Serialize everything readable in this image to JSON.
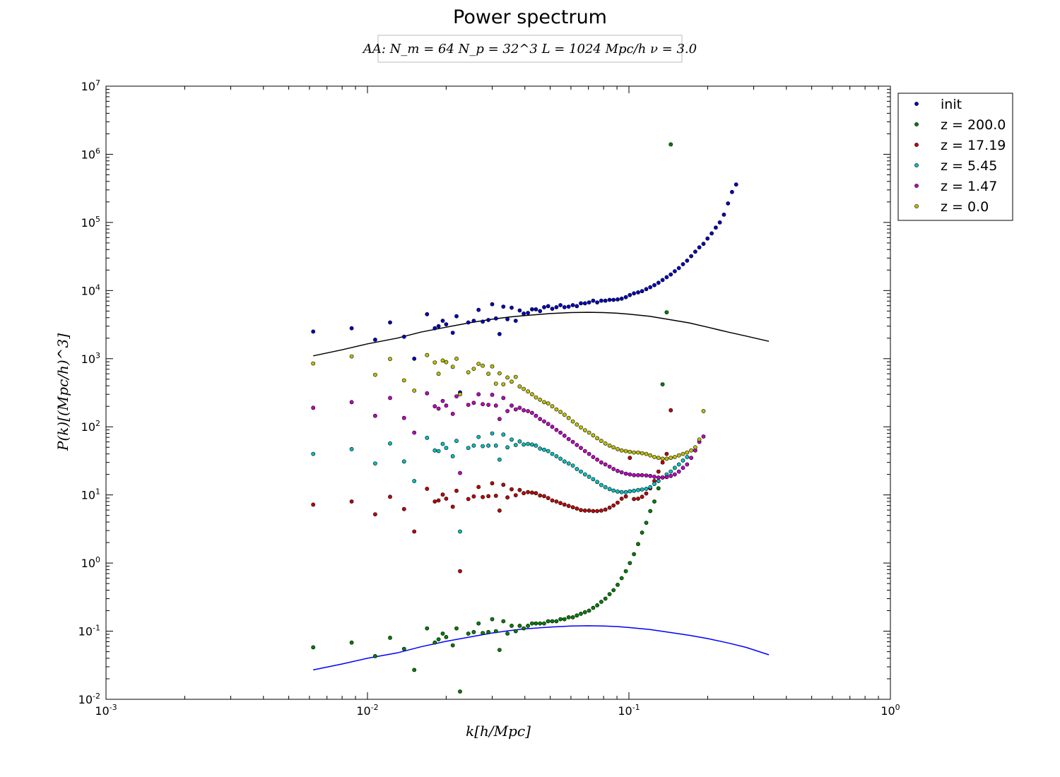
{
  "chart_data": {
    "type": "scatter",
    "title": "Power spectrum",
    "subtitle": "AA:  N_m = 64   N_p = 32^3   L = 1024 Mpc/h   ν = 3.0",
    "xlabel": "k[h/Mpc]",
    "ylabel": "P(k)[(Mpc/h)^3]",
    "xscale": "log",
    "yscale": "log",
    "xlim": [
      0.001,
      1
    ],
    "ylim": [
      0.01,
      10000000
    ],
    "x_tick_labels": [
      "10-3",
      "10-2",
      "10-1",
      "100"
    ],
    "y_tick_labels": [
      "10-2",
      "10-1",
      "100",
      "101",
      "102",
      "103",
      "104",
      "105",
      "106",
      "107"
    ],
    "legend_position": "outside-top-right",
    "grid": false,
    "k": [
      0.0062,
      0.0087,
      0.0107,
      0.0122,
      0.0138,
      0.0151,
      0.0169,
      0.0181,
      0.0187,
      0.0194,
      0.02,
      0.0212,
      0.0219,
      0.0226,
      0.0243,
      0.0255,
      0.0266,
      0.0276,
      0.029,
      0.03,
      0.031,
      0.032,
      0.0331,
      0.0343,
      0.0356,
      0.0369,
      0.0382,
      0.0396,
      0.0411,
      0.0426,
      0.0441,
      0.0457,
      0.0474,
      0.0491,
      0.0509,
      0.0528,
      0.0547,
      0.0567,
      0.0588,
      0.061,
      0.0632,
      0.0655,
      0.0679,
      0.0704,
      0.073,
      0.0756,
      0.0784,
      0.0813,
      0.0843,
      0.0873,
      0.0905,
      0.0938,
      0.0973,
      0.1008,
      0.1045,
      0.1084,
      0.1123,
      0.1165,
      0.1207,
      0.1251,
      0.1297,
      0.1345,
      0.1394,
      0.1445,
      0.1498,
      0.1553,
      0.161,
      0.1669,
      0.173,
      0.1794,
      0.1859,
      0.1928,
      0.1998,
      0.2072,
      0.2148,
      0.2226,
      0.2308,
      0.2393,
      0.248,
      0.2571,
      0.2665,
      0.2763,
      0.2864,
      0.297,
      0.3078,
      0.3191,
      0.3309,
      0.343
    ],
    "series": [
      {
        "name": "init",
        "color": "#0000bf",
        "values": [
          2500,
          2800,
          1900,
          3400,
          2100,
          1000,
          4500,
          2800,
          3000,
          3600,
          3200,
          2400,
          4200,
          320,
          3400,
          3600,
          5200,
          3500,
          3700,
          6300,
          3900,
          2300,
          5800,
          3800,
          5600,
          3600,
          5100,
          4600,
          4700,
          5300,
          5300,
          5000,
          5700,
          5900,
          5400,
          5700,
          6100,
          5700,
          5800,
          6100,
          5900,
          6500,
          6500,
          6700,
          7100,
          6700,
          7100,
          7100,
          7300,
          7300,
          7400,
          7600,
          8000,
          8600,
          9100,
          9400,
          9800,
          10500,
          11200,
          12000,
          13000,
          14300,
          15700,
          17200,
          19200,
          21400,
          24400,
          27500,
          32000,
          37200,
          43000,
          48500,
          58000,
          69000,
          84000,
          100000,
          130000,
          190000,
          280000,
          360000,
          null,
          null,
          null,
          null,
          null,
          null,
          null,
          null
        ]
      },
      {
        "name": "z = 200.0",
        "color": "#007f00",
        "values": [
          0.058,
          0.068,
          0.043,
          0.08,
          0.055,
          0.027,
          0.11,
          0.068,
          0.076,
          0.092,
          0.082,
          0.062,
          0.11,
          0.013,
          0.092,
          0.097,
          0.13,
          0.094,
          0.097,
          0.15,
          0.1,
          0.053,
          0.14,
          0.092,
          0.12,
          0.1,
          0.12,
          0.11,
          0.12,
          0.13,
          0.13,
          0.13,
          0.13,
          0.14,
          0.14,
          0.14,
          0.15,
          0.15,
          0.16,
          0.16,
          0.17,
          0.18,
          0.19,
          0.2,
          0.22,
          0.24,
          0.27,
          0.3,
          0.35,
          0.4,
          0.48,
          0.6,
          0.76,
          1.0,
          1.35,
          1.9,
          2.8,
          3.9,
          5.8,
          8.0,
          12.5,
          420,
          4800,
          1400000,
          null,
          null,
          null,
          null,
          null,
          null,
          null,
          null,
          null,
          null,
          null,
          null,
          null,
          null,
          null,
          null,
          null,
          null,
          null,
          null,
          null,
          null,
          null,
          null
        ]
      },
      {
        "name": "z = 17.19",
        "color": "#bf0000",
        "values": [
          7.2,
          8.0,
          5.2,
          9.4,
          6.2,
          2.9,
          12.3,
          8.0,
          8.3,
          10.1,
          8.8,
          6.7,
          11.5,
          0.76,
          8.7,
          9.5,
          13.1,
          9.3,
          9.6,
          14.8,
          9.7,
          5.9,
          14.1,
          9.2,
          12.1,
          9.9,
          11.8,
          10.6,
          11.0,
          10.8,
          10.6,
          9.8,
          9.6,
          9.0,
          8.3,
          8.0,
          7.6,
          7.2,
          6.9,
          6.6,
          6.3,
          6.0,
          5.9,
          5.9,
          5.8,
          5.8,
          5.9,
          6.1,
          6.5,
          7.0,
          7.7,
          8.8,
          9.5,
          35,
          8.7,
          8.8,
          9.4,
          10.5,
          12.5,
          16.0,
          22.0,
          30.0,
          40.0,
          175,
          null,
          null,
          null,
          null,
          null,
          null,
          null,
          null,
          null,
          null,
          null,
          null,
          null,
          null,
          null,
          null,
          null,
          null,
          null,
          null,
          null,
          null,
          null,
          null
        ]
      },
      {
        "name": "z = 5.45",
        "color": "#00bfbf",
        "values": [
          40,
          47,
          29,
          57,
          31,
          16,
          69,
          45,
          44,
          56,
          49,
          37,
          62,
          2.9,
          49,
          53,
          71,
          52,
          53,
          80,
          53,
          33,
          77,
          50,
          65,
          54,
          61,
          55,
          56,
          55,
          53,
          48,
          46,
          44,
          40,
          37,
          34,
          31,
          29,
          27,
          24,
          22,
          20,
          18.5,
          17,
          15.5,
          14,
          13,
          12.2,
          11.6,
          11.2,
          11,
          11,
          11.3,
          11.5,
          11.8,
          12,
          12.3,
          13,
          14.5,
          16,
          18,
          20,
          22,
          25,
          28,
          32,
          36,
          null,
          null,
          null,
          null,
          null,
          null,
          null,
          null,
          null,
          null,
          null,
          null,
          null,
          null,
          null,
          null,
          null,
          null,
          null,
          null
        ]
      },
      {
        "name": "z = 1.47",
        "color": "#bf00bf",
        "values": [
          190,
          230,
          145,
          265,
          135,
          82,
          310,
          200,
          185,
          240,
          205,
          155,
          280,
          21,
          210,
          225,
          300,
          215,
          210,
          295,
          205,
          130,
          265,
          170,
          205,
          180,
          190,
          175,
          170,
          160,
          145,
          130,
          120,
          110,
          100,
          90,
          82,
          74,
          66,
          60,
          54,
          49,
          44,
          40,
          36,
          33,
          30,
          28,
          26,
          24,
          22.5,
          21.5,
          20.5,
          20,
          19.5,
          19.5,
          19.5,
          19.3,
          19,
          18.5,
          18,
          18,
          18.3,
          19,
          20,
          22,
          25,
          28,
          35,
          45,
          60,
          72,
          null,
          null,
          null,
          null,
          null,
          null,
          null,
          null,
          null,
          null,
          null,
          null,
          null,
          null,
          null,
          null
        ]
      },
      {
        "name": "z = 0.0",
        "color": "#bfbf00",
        "values": [
          850,
          1080,
          580,
          990,
          480,
          340,
          1130,
          880,
          600,
          940,
          890,
          760,
          1000,
          300,
          630,
          710,
          840,
          790,
          600,
          770,
          430,
          610,
          420,
          530,
          460,
          540,
          390,
          360,
          330,
          300,
          270,
          250,
          230,
          220,
          200,
          180,
          165,
          150,
          135,
          120,
          108,
          98,
          89,
          82,
          75,
          68,
          62,
          57,
          53,
          50,
          47,
          45,
          44,
          43,
          42,
          42,
          41,
          40,
          38,
          36,
          35,
          34,
          34,
          35,
          36,
          38,
          40,
          42,
          45,
          50,
          65,
          170,
          null,
          null,
          null,
          null,
          null,
          null,
          null,
          null,
          null,
          null,
          null,
          null,
          null,
          null,
          null,
          null
        ]
      }
    ],
    "theory_curves": [
      {
        "color": "#000000",
        "k": [
          0.0062,
          0.008,
          0.01,
          0.013,
          0.016,
          0.02,
          0.025,
          0.03,
          0.035,
          0.04,
          0.05,
          0.06,
          0.07,
          0.08,
          0.09,
          0.1,
          0.12,
          0.14,
          0.17,
          0.2,
          0.24,
          0.28,
          0.343
        ],
        "values": [
          1100,
          1350,
          1650,
          2000,
          2450,
          2900,
          3400,
          3800,
          4100,
          4300,
          4600,
          4750,
          4800,
          4750,
          4650,
          4500,
          4200,
          3800,
          3350,
          2900,
          2450,
          2150,
          1800
        ]
      },
      {
        "color": "#0000ff",
        "k": [
          0.0062,
          0.008,
          0.01,
          0.013,
          0.016,
          0.02,
          0.025,
          0.03,
          0.035,
          0.04,
          0.05,
          0.06,
          0.07,
          0.08,
          0.09,
          0.1,
          0.12,
          0.14,
          0.17,
          0.2,
          0.24,
          0.28,
          0.343
        ],
        "values": [
          0.027,
          0.033,
          0.04,
          0.048,
          0.059,
          0.071,
          0.083,
          0.094,
          0.102,
          0.108,
          0.115,
          0.119,
          0.12,
          0.119,
          0.117,
          0.113,
          0.106,
          0.097,
          0.087,
          0.078,
          0.067,
          0.058,
          0.045
        ]
      }
    ]
  }
}
